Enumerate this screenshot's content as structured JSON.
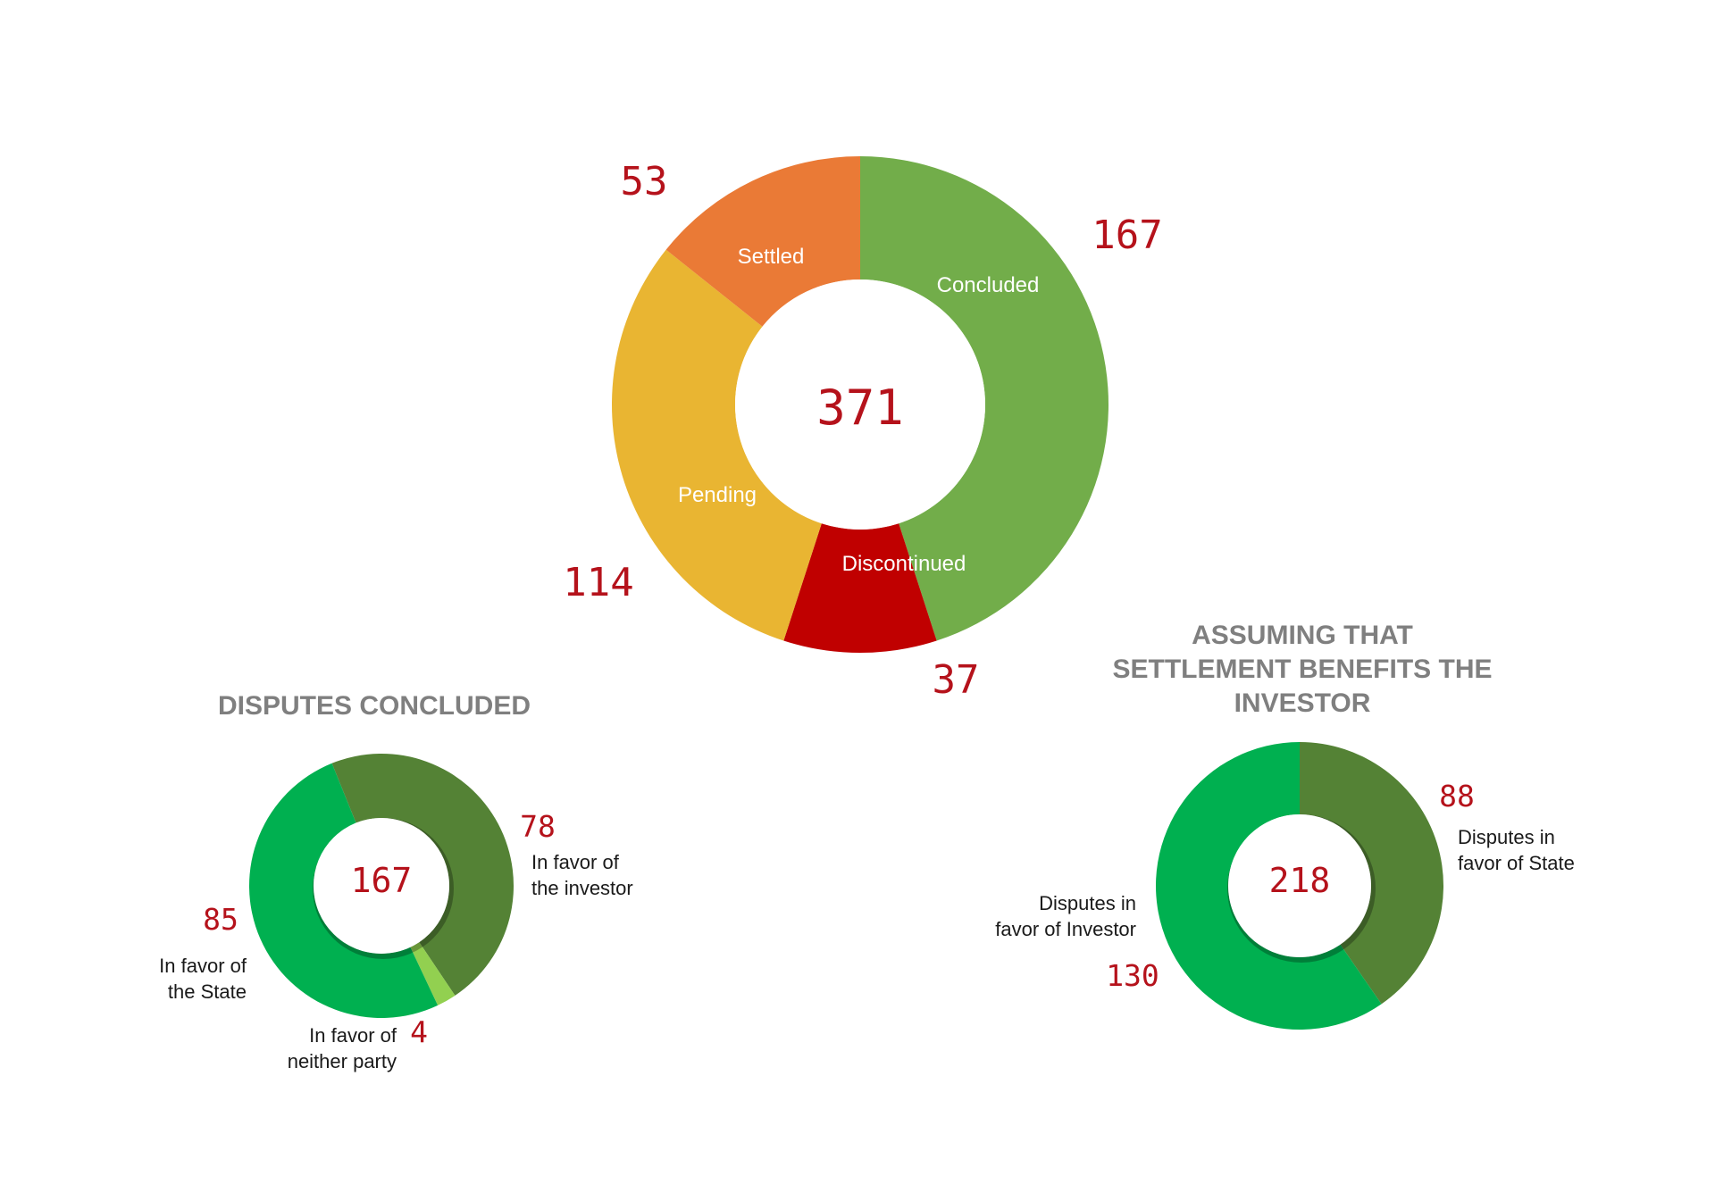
{
  "colors": {
    "concluded": "#72ad4a",
    "discontinued": "#c00000",
    "pending": "#e9b532",
    "settled": "#ea7a36",
    "favor_investor_dark": "#548235",
    "favor_state_bright": "#00b050",
    "neither_party": "#92d050",
    "number_red": "#b5121b",
    "heading_gray": "#7f7f7f"
  },
  "chart_data": [
    {
      "type": "pie",
      "donut": true,
      "title": "",
      "total_label": "371",
      "slices": [
        {
          "label": "Concluded",
          "value": 167,
          "value_label": "167",
          "color": "#72ad4a"
        },
        {
          "label": "Discontinued",
          "value": 37,
          "value_label": "37",
          "color": "#c00000"
        },
        {
          "label": "Pending",
          "value": 114,
          "value_label": "114",
          "color": "#e9b532"
        },
        {
          "label": "Settled",
          "value": 53,
          "value_label": "53",
          "color": "#ea7a36"
        }
      ]
    },
    {
      "type": "pie",
      "donut": true,
      "title": "DISPUTES CONCLUDED",
      "total_label": "167",
      "slices": [
        {
          "label": "In favor of the investor",
          "label_lines": [
            "In favor of",
            "the investor"
          ],
          "value": 78,
          "value_label": "78",
          "color": "#548235"
        },
        {
          "label": "In favor of neither party",
          "label_lines": [
            "In favor of",
            "neither party"
          ],
          "value": 4,
          "value_label": "4",
          "color": "#92d050"
        },
        {
          "label": "In favor of the State",
          "label_lines": [
            "In favor of",
            "the State"
          ],
          "value": 85,
          "value_label": "85",
          "color": "#00b050"
        }
      ]
    },
    {
      "type": "pie",
      "donut": true,
      "title": "ASSUMING THAT SETTLEMENT BENEFITS THE INVESTOR",
      "title_lines": [
        "ASSUMING THAT",
        "SETTLEMENT BENEFITS THE",
        "INVESTOR"
      ],
      "total_label": "218",
      "slices": [
        {
          "label": "Disputes in favor of State",
          "label_lines": [
            "Disputes in",
            "favor of State"
          ],
          "value": 88,
          "value_label": "88",
          "color": "#548235"
        },
        {
          "label": "Disputes in favor of Investor",
          "label_lines": [
            "Disputes in",
            "favor of Investor"
          ],
          "value": 130,
          "value_label": "130",
          "color": "#00b050"
        }
      ]
    }
  ]
}
